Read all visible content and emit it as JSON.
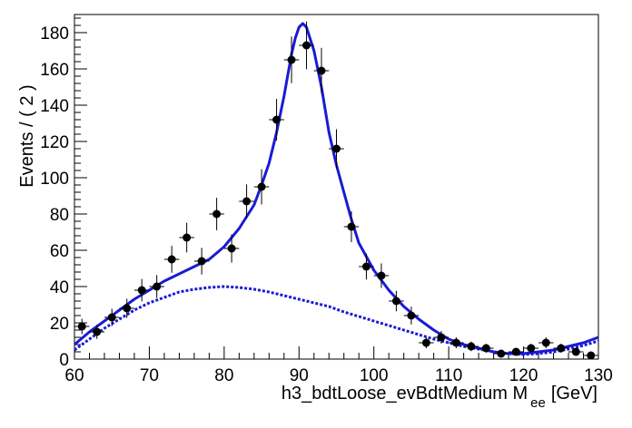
{
  "chart_data": {
    "type": "scatter",
    "xlabel": "h3_bdtLoose_evBdtMedium  M",
    "xlabel_subscript": "ee",
    "xlabel_unit": "[GeV]",
    "ylabel": "Events / ( 2 )",
    "xlim": [
      60,
      130
    ],
    "ylim": [
      0,
      190
    ],
    "x_ticks": [
      "60",
      "70",
      "80",
      "90",
      "100",
      "110",
      "120",
      "130"
    ],
    "y_ticks": [
      "0",
      "20",
      "40",
      "60",
      "80",
      "100",
      "120",
      "140",
      "160",
      "180"
    ],
    "grid": false,
    "legend": "none",
    "colors": {
      "data": "#000000",
      "fit": "#1a1ad6",
      "background": "#1a1ad6"
    },
    "series": [
      {
        "type": "points_with_errors",
        "x_error": 1,
        "points": [
          {
            "x": 61,
            "y": 18
          },
          {
            "x": 63,
            "y": 15
          },
          {
            "x": 65,
            "y": 23
          },
          {
            "x": 67,
            "y": 28
          },
          {
            "x": 69,
            "y": 38
          },
          {
            "x": 71,
            "y": 40
          },
          {
            "x": 73,
            "y": 55
          },
          {
            "x": 75,
            "y": 67
          },
          {
            "x": 77,
            "y": 54
          },
          {
            "x": 79,
            "y": 80
          },
          {
            "x": 81,
            "y": 61
          },
          {
            "x": 83,
            "y": 87
          },
          {
            "x": 85,
            "y": 95
          },
          {
            "x": 87,
            "y": 132
          },
          {
            "x": 89,
            "y": 165
          },
          {
            "x": 91,
            "y": 173
          },
          {
            "x": 93,
            "y": 159
          },
          {
            "x": 95,
            "y": 116
          },
          {
            "x": 97,
            "y": 73
          },
          {
            "x": 99,
            "y": 51
          },
          {
            "x": 101,
            "y": 46
          },
          {
            "x": 103,
            "y": 32
          },
          {
            "x": 105,
            "y": 24
          },
          {
            "x": 107,
            "y": 9
          },
          {
            "x": 109,
            "y": 12
          },
          {
            "x": 111,
            "y": 9
          },
          {
            "x": 113,
            "y": 7
          },
          {
            "x": 115,
            "y": 6
          },
          {
            "x": 117,
            "y": 3
          },
          {
            "x": 119,
            "y": 4
          },
          {
            "x": 121,
            "y": 6
          },
          {
            "x": 123,
            "y": 9
          },
          {
            "x": 125,
            "y": 6
          },
          {
            "x": 127,
            "y": 4
          },
          {
            "x": 129,
            "y": 2
          }
        ]
      },
      {
        "type": "line",
        "style": "solid",
        "x": [
          60,
          62,
          64,
          66,
          68,
          70,
          72,
          74,
          76,
          78,
          80,
          82,
          84,
          85,
          86,
          87,
          88,
          89,
          89.5,
          90,
          90.5,
          91,
          92,
          93,
          94,
          95,
          96,
          97,
          98,
          100,
          102,
          104,
          106,
          108,
          110,
          112,
          114,
          116,
          118,
          120,
          122,
          124,
          126,
          128,
          130
        ],
        "y": [
          8,
          15,
          21,
          27,
          33,
          38,
          43,
          47,
          51,
          55,
          62,
          72,
          85,
          96,
          108,
          125,
          145,
          168,
          177,
          183,
          185,
          183,
          170,
          150,
          125,
          107,
          92,
          77,
          64,
          49,
          38,
          29,
          22,
          16,
          11,
          8,
          6,
          4,
          3,
          3,
          4,
          5,
          7,
          9,
          12
        ]
      },
      {
        "type": "line",
        "style": "dotted",
        "x": [
          60,
          62,
          64,
          66,
          68,
          70,
          72,
          74,
          76,
          78,
          80,
          82,
          84,
          86,
          88,
          90,
          92,
          94,
          96,
          98,
          100,
          102,
          104,
          106,
          108,
          110,
          112,
          114,
          116,
          118,
          120,
          122,
          124,
          126,
          128,
          130
        ],
        "y": [
          5,
          11,
          17,
          22,
          27,
          31,
          34,
          37,
          38.5,
          39.5,
          40,
          39.5,
          38.5,
          37,
          35,
          33,
          31,
          29,
          26,
          23.5,
          21,
          18.5,
          16,
          13.5,
          11,
          9,
          7,
          5.5,
          4,
          3,
          2.5,
          3,
          4,
          5.5,
          7.5,
          10
        ]
      }
    ]
  }
}
